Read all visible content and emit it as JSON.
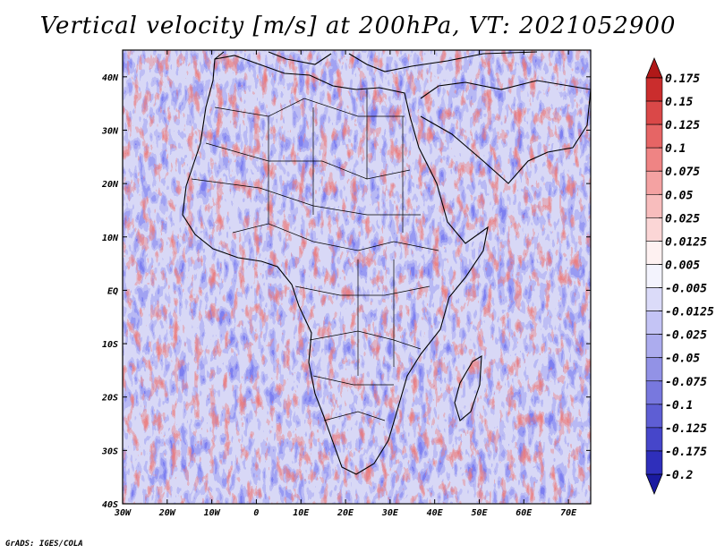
{
  "title": "Vertical velocity [m/s] at 200hPa, VT: 2021052900",
  "credit": "GrADS: IGES/COLA",
  "map": {
    "x_ticks": [
      "30W",
      "20W",
      "10W",
      "0",
      "10E",
      "20E",
      "30E",
      "40E",
      "50E",
      "60E",
      "70E"
    ],
    "y_ticks": [
      "40N",
      "30N",
      "20N",
      "10N",
      "EQ",
      "10S",
      "20S",
      "30S",
      "40S"
    ],
    "lon_range": [
      -30,
      75
    ],
    "lat_range": [
      -40,
      45
    ]
  },
  "colorbar": {
    "labels": [
      "0.175",
      "0.15",
      "0.125",
      "0.1",
      "0.075",
      "0.05",
      "0.025",
      "0.0125",
      "0.005",
      "-0.005",
      "-0.0125",
      "-0.025",
      "-0.05",
      "-0.075",
      "-0.1",
      "-0.125",
      "-0.175",
      "-0.2"
    ],
    "colors": [
      "#c02020",
      "#d43a3a",
      "#e05555",
      "#ec7575",
      "#f29393",
      "#f6b0b0",
      "#f9caca",
      "#fce2e2",
      "#ffffff",
      "#e6e6fb",
      "#d0d0f7",
      "#b8b8f2",
      "#9f9fea",
      "#8585e2",
      "#6b6bd9",
      "#5151cf",
      "#3a3ac4",
      "#2424b2"
    ],
    "top_color": "#b01818",
    "bottom_color": "#1a1aa0"
  }
}
